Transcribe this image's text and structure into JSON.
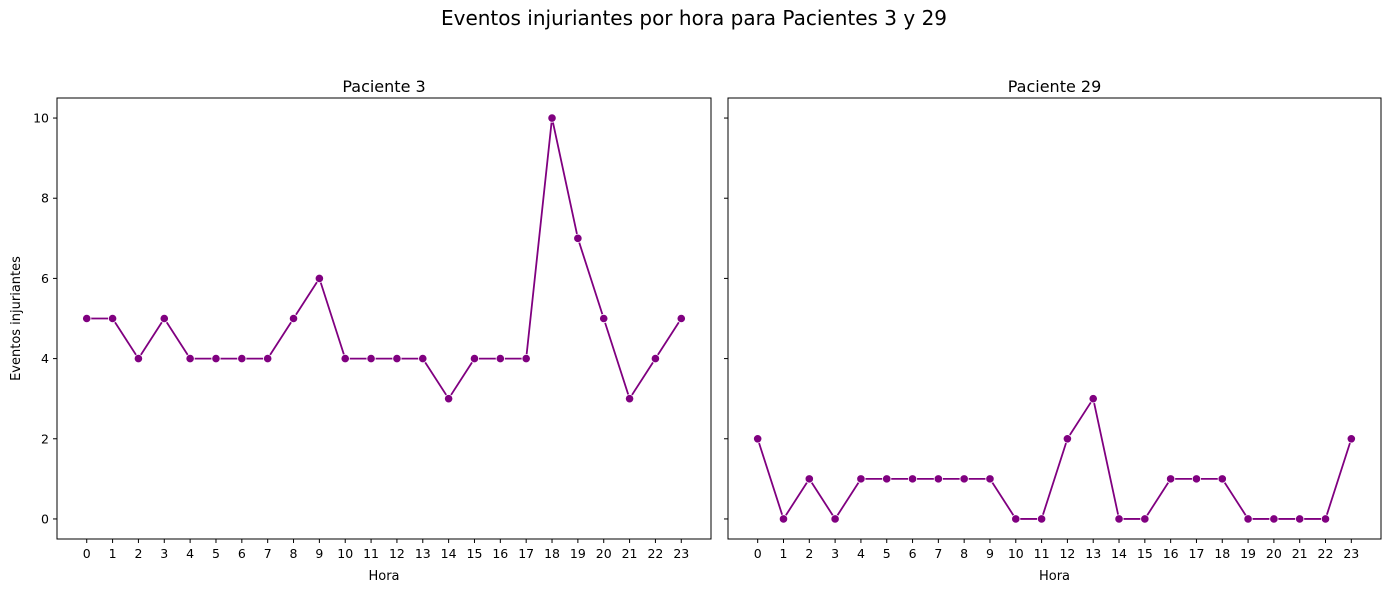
{
  "title": "Eventos injuriantes por hora para Pacientes 3 y 29",
  "colors": {
    "series": "#800080"
  },
  "chart_data": [
    {
      "type": "line",
      "title": "Paciente 3",
      "xlabel": "Hora",
      "ylabel": "Eventos injuriantes",
      "x": [
        0,
        1,
        2,
        3,
        4,
        5,
        6,
        7,
        8,
        9,
        10,
        11,
        12,
        13,
        14,
        15,
        16,
        17,
        18,
        19,
        20,
        21,
        22,
        23
      ],
      "series": [
        {
          "values": [
            5,
            5,
            4,
            5,
            4,
            4,
            4,
            4,
            5,
            6,
            4,
            4,
            4,
            4,
            3,
            4,
            4,
            4,
            10,
            7,
            5,
            3,
            4,
            5
          ]
        }
      ],
      "xticks": [
        "0",
        "1",
        "2",
        "3",
        "4",
        "5",
        "6",
        "7",
        "8",
        "9",
        "10",
        "11",
        "12",
        "13",
        "14",
        "15",
        "16",
        "17",
        "18",
        "19",
        "20",
        "21",
        "22",
        "23"
      ],
      "yticks": [
        "0",
        "2",
        "4",
        "6",
        "8",
        "10"
      ],
      "ylim": [
        -0.5,
        10.5
      ],
      "grid": false,
      "marker": "circle"
    },
    {
      "type": "line",
      "title": "Paciente 29",
      "xlabel": "Hora",
      "ylabel": "",
      "x": [
        0,
        1,
        2,
        3,
        4,
        5,
        6,
        7,
        8,
        9,
        10,
        11,
        12,
        13,
        14,
        15,
        16,
        17,
        18,
        19,
        20,
        21,
        22,
        23
      ],
      "series": [
        {
          "values": [
            2,
            0,
            1,
            0,
            1,
            1,
            1,
            1,
            1,
            1,
            0,
            0,
            2,
            3,
            0,
            0,
            1,
            1,
            1,
            0,
            0,
            0,
            0,
            2
          ]
        }
      ],
      "xticks": [
        "0",
        "1",
        "2",
        "3",
        "4",
        "5",
        "6",
        "7",
        "8",
        "9",
        "10",
        "11",
        "12",
        "13",
        "14",
        "15",
        "16",
        "17",
        "18",
        "19",
        "20",
        "21",
        "22",
        "23"
      ],
      "yticks": [],
      "ylim": [
        -0.5,
        10.5
      ],
      "grid": false,
      "marker": "circle"
    }
  ]
}
